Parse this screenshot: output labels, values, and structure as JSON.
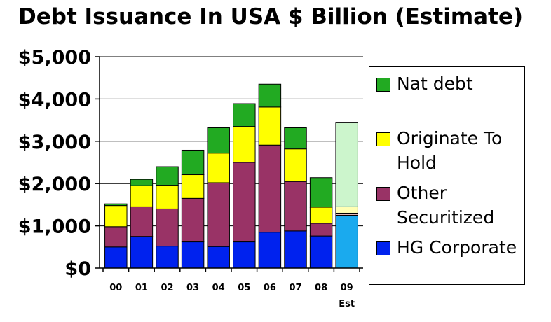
{
  "chart_data": {
    "type": "bar",
    "stacked": true,
    "title": "Debt Issuance In USA $ Billion (Estimate)",
    "xlabel": "",
    "ylabel": "",
    "ylim": [
      0,
      5000
    ],
    "yticks": [
      0,
      1000,
      2000,
      3000,
      4000,
      5000
    ],
    "ytick_labels": [
      "$0",
      "$1,000",
      "$2,000",
      "$3,000",
      "$4,000",
      "$5,000"
    ],
    "categories": [
      "00",
      "01",
      "02",
      "03",
      "04",
      "05",
      "06",
      "07",
      "08",
      "09"
    ],
    "category_sublabels": [
      "",
      "",
      "",
      "",
      "",
      "",
      "",
      "",
      "",
      "Est"
    ],
    "grid": "horizontal",
    "legend_position": "right",
    "series": [
      {
        "name": "HG Corporate",
        "color": "#0022ee",
        "highlight_color": "#1aaaee",
        "values": [
          500,
          750,
          520,
          620,
          510,
          620,
          850,
          880,
          760,
          1250
        ]
      },
      {
        "name": "Other Securitized",
        "color": "#993366",
        "highlight_color": "#e6b8b8",
        "values": [
          480,
          700,
          880,
          1030,
          1510,
          1880,
          2060,
          1170,
          300,
          50
        ]
      },
      {
        "name": "Originate To Hold",
        "color": "#ffff00",
        "highlight_color": "#ffffb3",
        "values": [
          500,
          500,
          560,
          560,
          700,
          850,
          900,
          770,
          380,
          150
        ]
      },
      {
        "name": "Nat debt",
        "color": "#22aa22",
        "highlight_color": "#ccf5cc",
        "values": [
          40,
          150,
          440,
          580,
          600,
          540,
          540,
          500,
          700,
          2000
        ]
      }
    ],
    "highlighted_category": "09"
  },
  "legend": [
    {
      "label": "Nat debt",
      "color": "#22aa22"
    },
    {
      "label": "Originate To Hold",
      "color": "#ffff00"
    },
    {
      "label": "Other Securitized",
      "color": "#993366"
    },
    {
      "label": "HG Corporate",
      "color": "#0022ee"
    }
  ]
}
